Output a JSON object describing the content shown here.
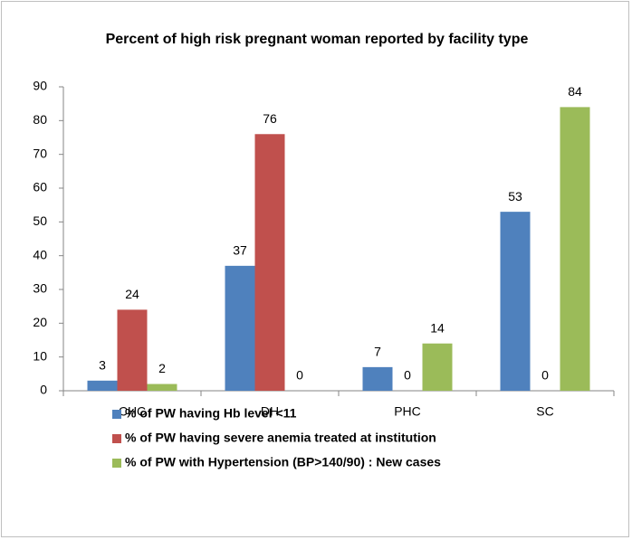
{
  "chart_data": {
    "type": "bar",
    "title": "Percent of high risk pregnant woman reported by facility type",
    "categories": [
      "CHC",
      "DH",
      "PHC",
      "SC"
    ],
    "series": [
      {
        "name": "% of PW having Hb level <11",
        "color": "#4f81bd",
        "values": [
          3,
          37,
          7,
          53
        ]
      },
      {
        "name": "% of PW having severe anemia treated at institution",
        "color": "#c0504d",
        "values": [
          24,
          76,
          0,
          0
        ]
      },
      {
        "name": "% of PW with Hypertension (BP>140/90) : New cases",
        "color": "#9bbb59",
        "values": [
          2,
          0,
          14,
          84
        ]
      }
    ],
    "ylim": [
      0,
      90
    ],
    "yticks": [
      0,
      10,
      20,
      30,
      40,
      50,
      60,
      70,
      80,
      90
    ],
    "legend": "bottom"
  }
}
